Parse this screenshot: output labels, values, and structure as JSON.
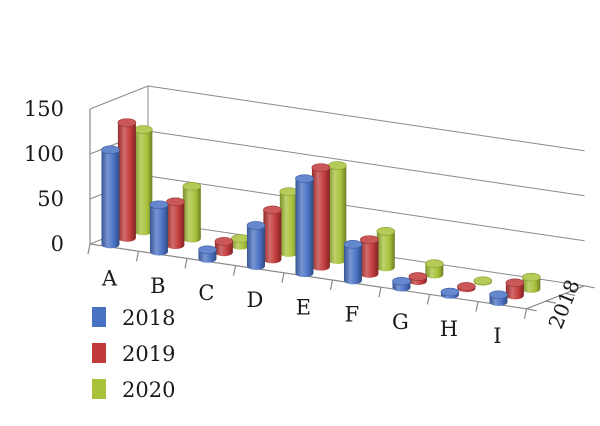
{
  "chart_data": {
    "type": "bar",
    "subtype": "3d-cylinder",
    "categories": [
      "A",
      "B",
      "C",
      "D",
      "E",
      "F",
      "G",
      "H",
      "I"
    ],
    "series": [
      {
        "name": "2018",
        "color": "#4a72c4",
        "values": [
          105,
          52,
          10,
          45,
          105,
          40,
          7,
          3,
          8
        ]
      },
      {
        "name": "2019",
        "color": "#c23b3b",
        "values": [
          128,
          48,
          12,
          55,
          110,
          38,
          5,
          2,
          14
        ]
      },
      {
        "name": "2020",
        "color": "#a8c23b",
        "values": [
          113,
          58,
          8,
          68,
          105,
          40,
          12,
          1,
          13
        ]
      }
    ],
    "y_ticks": [
      "0",
      "50",
      "100",
      "150"
    ],
    "ylim": [
      0,
      150
    ],
    "depth_axis_label": "2018",
    "legend_position": "bottom-left",
    "grid": true
  }
}
